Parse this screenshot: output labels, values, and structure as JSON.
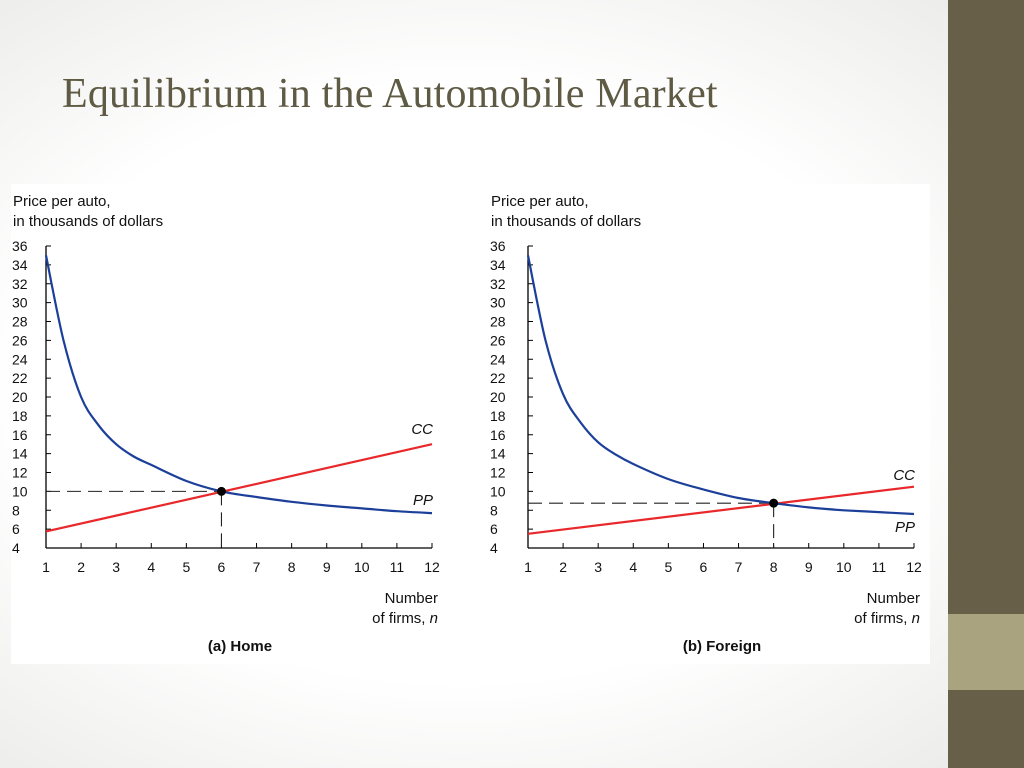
{
  "slide": {
    "title": "Equilibrium in the Automobile Market"
  },
  "chart_data": [
    {
      "type": "line",
      "caption": "(a) Home",
      "ylabel_line1": "Price per auto,",
      "ylabel_line2": "in thousands of dollars",
      "xlabel_line1": "Number",
      "xlabel_line2": "of firms,",
      "xlabel_var": "n",
      "xlim": [
        1,
        12
      ],
      "ylim": [
        4,
        36
      ],
      "x_ticks": [
        1,
        2,
        3,
        4,
        5,
        6,
        7,
        8,
        9,
        10,
        11,
        12
      ],
      "y_ticks": [
        4,
        6,
        8,
        10,
        12,
        14,
        16,
        18,
        20,
        22,
        24,
        26,
        28,
        30,
        32,
        34,
        36
      ],
      "grid": false,
      "series": [
        {
          "name": "CC",
          "color": "#e8282b",
          "x": [
            1,
            12
          ],
          "y": [
            5.75,
            15.0
          ]
        },
        {
          "name": "PP",
          "color": "#1c3f9a",
          "x": [
            1,
            1.5,
            2,
            2.5,
            3,
            3.5,
            4,
            5,
            6,
            7,
            8,
            9,
            10,
            11,
            12
          ],
          "y": [
            35,
            26,
            20,
            17,
            15,
            13.7,
            12.8,
            11.1,
            10.0,
            9.4,
            8.9,
            8.5,
            8.2,
            7.9,
            7.7
          ]
        }
      ],
      "equilibrium": {
        "x": 6,
        "y": 10
      }
    },
    {
      "type": "line",
      "caption": "(b) Foreign",
      "ylabel_line1": "Price per auto,",
      "ylabel_line2": "in thousands of dollars",
      "xlabel_line1": "Number",
      "xlabel_line2": "of firms,",
      "xlabel_var": "n",
      "xlim": [
        1,
        12
      ],
      "ylim": [
        4,
        36
      ],
      "x_ticks": [
        1,
        2,
        3,
        4,
        5,
        6,
        7,
        8,
        9,
        10,
        11,
        12
      ],
      "y_ticks": [
        4,
        6,
        8,
        10,
        12,
        14,
        16,
        18,
        20,
        22,
        24,
        26,
        28,
        30,
        32,
        34,
        36
      ],
      "grid": false,
      "series": [
        {
          "name": "CC",
          "color": "#e8282b",
          "x": [
            1,
            12
          ],
          "y": [
            5.5,
            10.5
          ]
        },
        {
          "name": "PP",
          "color": "#1c3f9a",
          "x": [
            1,
            1.5,
            2,
            2.5,
            3,
            3.5,
            4,
            5,
            6,
            7,
            8,
            9,
            10,
            11,
            12
          ],
          "y": [
            35,
            26,
            20.3,
            17.3,
            15.2,
            13.9,
            12.9,
            11.3,
            10.2,
            9.3,
            8.75,
            8.3,
            8.0,
            7.8,
            7.6
          ]
        }
      ],
      "equilibrium": {
        "x": 8,
        "y": 8.75
      }
    }
  ]
}
